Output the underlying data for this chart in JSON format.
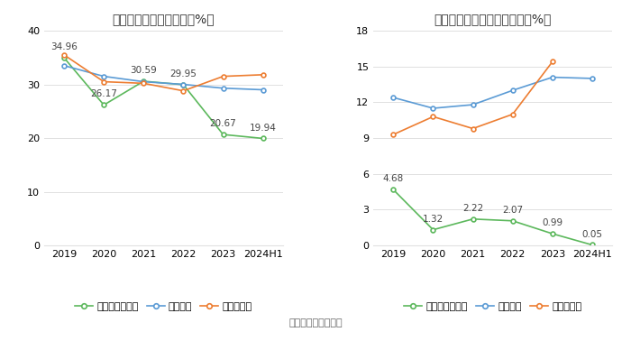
{
  "left_title": "近年来资产负债率情况（%）",
  "right_title": "近年来有息资产负债率情况（%）",
  "footer": "数据来源：恒生聚源",
  "categories": [
    "2019",
    "2020",
    "2021",
    "2022",
    "2023",
    "2024H1"
  ],
  "left": {
    "company": [
      34.96,
      26.17,
      30.59,
      29.95,
      20.67,
      19.94
    ],
    "industry_avg": [
      33.5,
      31.5,
      30.5,
      30.0,
      29.3,
      29.0
    ],
    "industry_median": [
      35.5,
      30.5,
      30.2,
      28.8,
      31.5,
      31.8
    ],
    "company_label": "公司资产负债率",
    "avg_label": "行业均值",
    "median_label": "行业中位数",
    "ylim": [
      0,
      40
    ],
    "yticks": [
      0,
      10,
      20,
      30,
      40
    ]
  },
  "right": {
    "company": [
      4.68,
      1.32,
      2.22,
      2.07,
      0.99,
      0.05
    ],
    "industry_avg": [
      12.4,
      11.5,
      11.8,
      13.0,
      14.1,
      14.0
    ],
    "industry_median": [
      9.3,
      10.8,
      9.8,
      11.0,
      15.4,
      null
    ],
    "company_label": "有息资产负债率",
    "avg_label": "行业均值",
    "median_label": "行业中位数",
    "ylim": [
      0,
      18
    ],
    "yticks": [
      0,
      3,
      6,
      9,
      12,
      15,
      18
    ]
  },
  "colors": {
    "company": "#5cb85c",
    "industry_avg": "#5b9bd5",
    "industry_median": "#ed7d31"
  },
  "bg_color": "#ffffff",
  "grid_color": "#e0e0e0",
  "font_size_title": 10,
  "font_size_tick": 8,
  "font_size_legend": 8,
  "font_size_annotation": 7.5,
  "font_size_footer": 8
}
